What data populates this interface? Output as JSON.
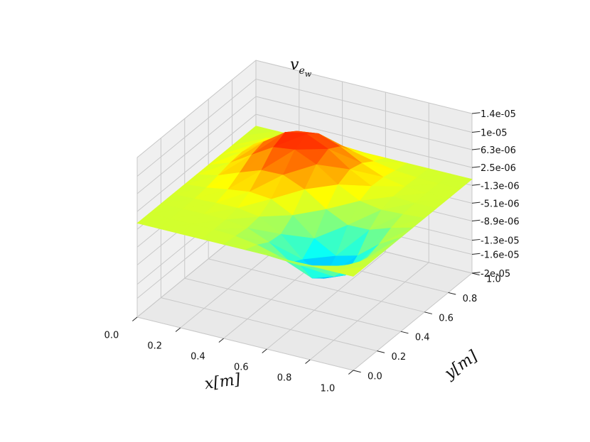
{
  "chart_data": {
    "type": "surface3d",
    "title": {
      "main": "v",
      "sub": "e",
      "subsub": "w"
    },
    "xlabel": "x[m]",
    "ylabel": "y[m]",
    "xlim": [
      0,
      1
    ],
    "ylim": [
      0,
      1
    ],
    "zlim": [
      -2e-05,
      1.4e-05
    ],
    "x_ticks": [
      "0.0",
      "0.2",
      "0.4",
      "0.6",
      "0.8",
      "1.0"
    ],
    "y_ticks": [
      "0.0",
      "0.2",
      "0.4",
      "0.6",
      "0.8",
      "1.0"
    ],
    "z_ticks": [
      "-2e-05",
      "-1.6e-05",
      "-1.3e-05",
      "-8.9e-06",
      "-5.1e-06",
      "-1.3e-06",
      "2.5e-06",
      "6.3e-06",
      "1e-05",
      "1.4e-05"
    ],
    "colormap": "jet",
    "grid": true,
    "surface": {
      "grid_x": [
        0,
        0.1,
        0.2,
        0.3,
        0.4,
        0.5,
        0.6,
        0.7,
        0.8,
        0.9,
        1.0
      ],
      "grid_y": [
        0,
        0.1,
        0.2,
        0.3,
        0.4,
        0.5,
        0.6,
        0.7,
        0.8,
        0.9,
        1.0
      ],
      "max_value": 1.37e-05,
      "max_location": [
        0.32,
        0.78
      ],
      "min_value": -1.9e-05,
      "min_location": [
        0.78,
        0.23
      ],
      "boundary_value": 0.0
    }
  }
}
